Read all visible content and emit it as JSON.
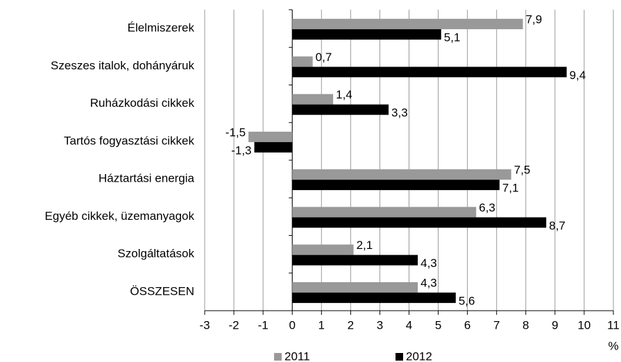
{
  "chart_data": {
    "type": "hbar",
    "categories": [
      "Élelmiszerek",
      "Szeszes italok, dohányáruk",
      "Ruházkodási cikkek",
      "Tartós fogyasztási cikkek",
      "Háztartási energia",
      "Egyéb cikkek, üzemanyagok",
      "Szolgáltatások",
      "ÖSSZESEN"
    ],
    "series": [
      {
        "name": "2011",
        "color": "#999999",
        "values": [
          7.9,
          0.7,
          1.4,
          -1.5,
          7.5,
          6.3,
          2.1,
          4.3
        ],
        "value_labels": [
          "7,9",
          "0,7",
          "1,4",
          "-1,5",
          "7,5",
          "6,3",
          "2,1",
          "4,3"
        ]
      },
      {
        "name": "2012",
        "color": "#000000",
        "values": [
          5.1,
          9.4,
          3.3,
          -1.3,
          7.1,
          8.7,
          4.3,
          5.6
        ],
        "value_labels": [
          "5,1",
          "9,4",
          "3,3",
          "-1,3",
          "7,1",
          "8,7",
          "4,3",
          "5,6"
        ]
      }
    ],
    "xlabel": "%",
    "xlim": [
      -3,
      11
    ],
    "xticks": [
      -3,
      -2,
      -1,
      0,
      1,
      2,
      3,
      4,
      5,
      6,
      7,
      8,
      9,
      10,
      11
    ],
    "grid": true,
    "legend": "bottom"
  }
}
